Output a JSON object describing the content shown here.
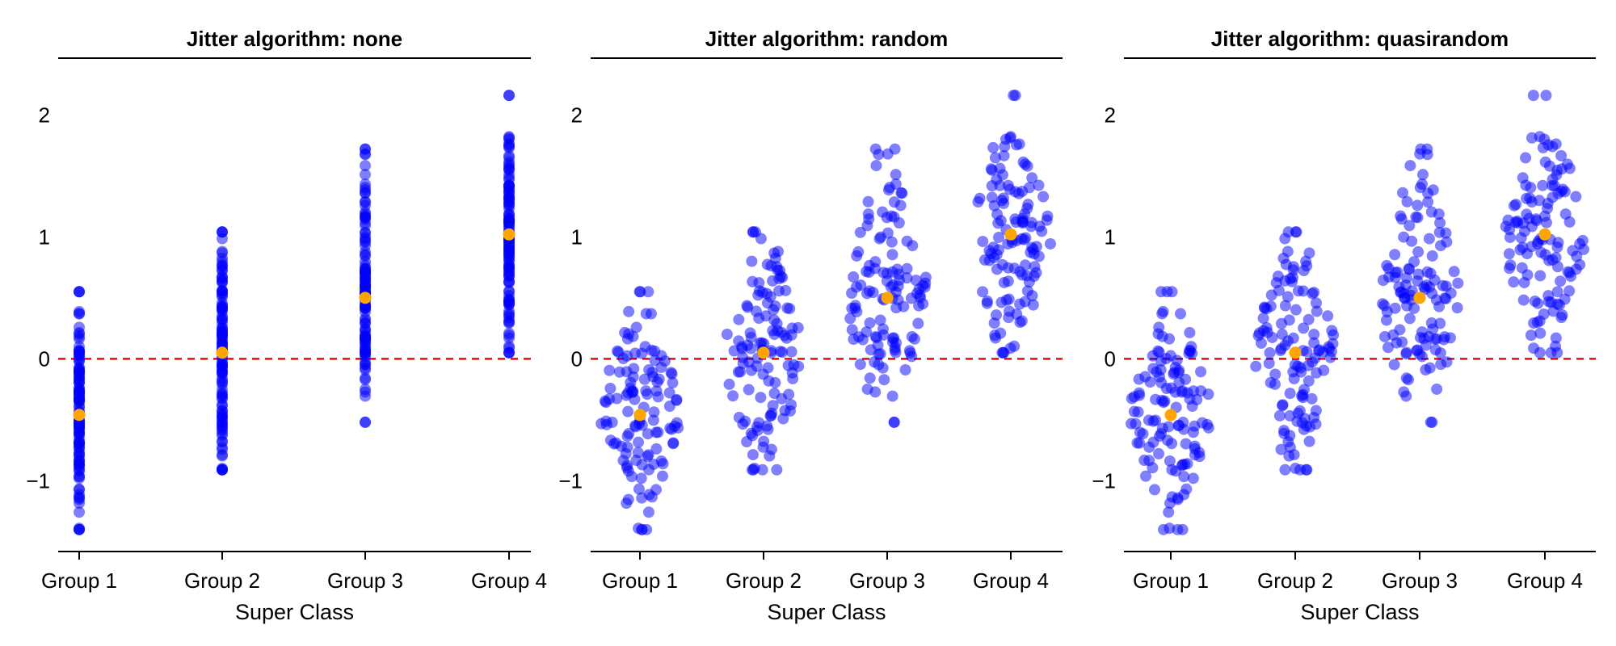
{
  "chart_data": [
    {
      "type": "scatter",
      "title": "Jitter algorithm: none",
      "jitter": "none",
      "xlabel": "Super Class",
      "ylabel": "",
      "categories": [
        "Group 1",
        "Group 2",
        "Group 3",
        "Group 4"
      ],
      "ylim": [
        -1.58,
        2.28
      ],
      "yticks": [
        -1,
        0,
        1,
        2
      ],
      "ytick_labels": [
        "−1",
        "0",
        "1",
        "2"
      ],
      "reference_line": {
        "y": 0,
        "style": "dashed",
        "color": "#ff0000"
      },
      "grid": false,
      "point_color": "#0000ff",
      "mean_color": "#ffa500",
      "groups": [
        {
          "name": "Group 1",
          "mean": -0.46,
          "min": -1.4,
          "max": 0.55,
          "n": 120
        },
        {
          "name": "Group 2",
          "mean": 0.05,
          "min": -0.91,
          "max": 1.04,
          "n": 120
        },
        {
          "name": "Group 3",
          "mean": 0.5,
          "min": -0.52,
          "max": 1.72,
          "n": 120
        },
        {
          "name": "Group 4",
          "mean": 1.02,
          "min": 0.05,
          "max": 2.16,
          "n": 120
        }
      ]
    },
    {
      "type": "scatter",
      "title": "Jitter algorithm: random",
      "jitter": "random",
      "xlabel": "Super Class",
      "ylabel": "",
      "categories": [
        "Group 1",
        "Group 2",
        "Group 3",
        "Group 4"
      ],
      "ylim": [
        -1.58,
        2.28
      ],
      "yticks": [
        -1,
        0,
        1,
        2
      ],
      "ytick_labels": [
        "−1",
        "0",
        "1",
        "2"
      ],
      "reference_line": {
        "y": 0,
        "style": "dashed",
        "color": "#ff0000"
      },
      "grid": false,
      "point_color": "#0000ff",
      "mean_color": "#ffa500",
      "groups": [
        {
          "name": "Group 1",
          "mean": -0.46,
          "min": -1.4,
          "max": 0.55,
          "n": 120
        },
        {
          "name": "Group 2",
          "mean": 0.05,
          "min": -0.91,
          "max": 1.04,
          "n": 120
        },
        {
          "name": "Group 3",
          "mean": 0.5,
          "min": -0.52,
          "max": 1.72,
          "n": 120
        },
        {
          "name": "Group 4",
          "mean": 1.02,
          "min": 0.05,
          "max": 2.16,
          "n": 120
        }
      ]
    },
    {
      "type": "scatter",
      "title": "Jitter algorithm: quasirandom",
      "jitter": "quasirandom",
      "xlabel": "Super Class",
      "ylabel": "",
      "categories": [
        "Group 1",
        "Group 2",
        "Group 3",
        "Group 4"
      ],
      "ylim": [
        -1.58,
        2.28
      ],
      "yticks": [
        -1,
        0,
        1,
        2
      ],
      "ytick_labels": [
        "−1",
        "0",
        "1",
        "2"
      ],
      "reference_line": {
        "y": 0,
        "style": "dashed",
        "color": "#ff0000"
      },
      "grid": false,
      "point_color": "#0000ff",
      "mean_color": "#ffa500",
      "groups": [
        {
          "name": "Group 1",
          "mean": -0.46,
          "min": -1.4,
          "max": 0.55,
          "n": 120
        },
        {
          "name": "Group 2",
          "mean": 0.05,
          "min": -0.91,
          "max": 1.04,
          "n": 120
        },
        {
          "name": "Group 3",
          "mean": 0.5,
          "min": -0.52,
          "max": 1.72,
          "n": 120
        },
        {
          "name": "Group 4",
          "mean": 1.02,
          "min": 0.05,
          "max": 2.16,
          "n": 120
        }
      ]
    }
  ]
}
